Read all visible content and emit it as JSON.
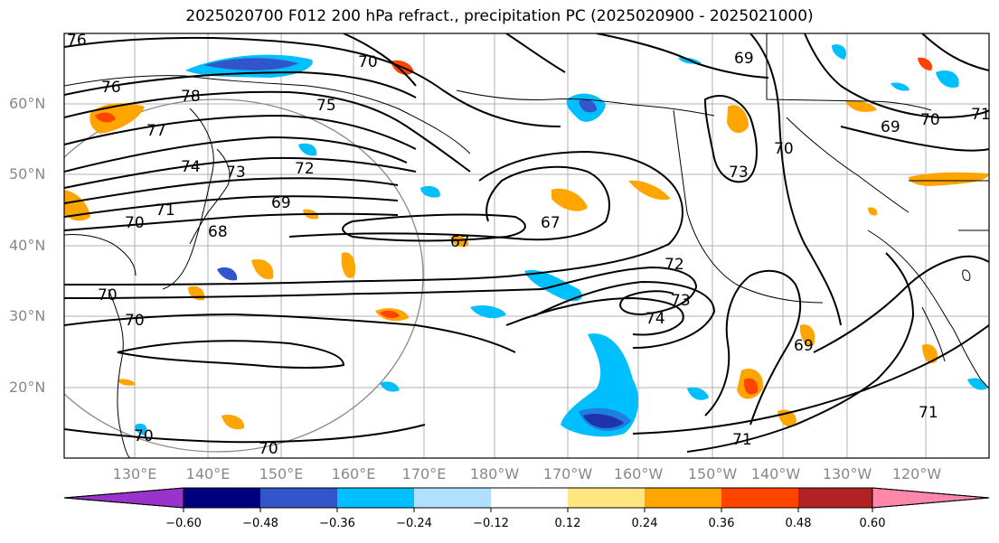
{
  "title": "2025020700 F012 200 hPa refract., precipitation PC (2025020900 - 2025021000)",
  "lat_labels": [
    "60°N",
    "50°N",
    "40°N",
    "30°N",
    "20°N"
  ],
  "lon_labels": [
    "130°E",
    "140°E",
    "150°E",
    "160°E",
    "170°E",
    "180°W",
    "170°W",
    "160°W",
    "150°W",
    "140°W",
    "130°W",
    "120°W"
  ],
  "contour_labels": [
    "76",
    "76",
    "78",
    "75",
    "77",
    "74",
    "73",
    "72",
    "71",
    "70",
    "69",
    "68",
    "67",
    "67",
    "72",
    "73",
    "74",
    "70",
    "69",
    "71",
    "70",
    "69",
    "73",
    "70",
    "69",
    "71",
    "71",
    "70",
    "70",
    "70",
    "70"
  ],
  "colorbar": {
    "tick_labels": [
      "−0.60",
      "−0.48",
      "−0.36",
      "−0.24",
      "−0.12",
      "0.12",
      "0.24",
      "0.36",
      "0.48",
      "0.60"
    ],
    "colors": [
      "#9933cc",
      "#00007f",
      "#3355cc",
      "#00bfff",
      "#b0e0ff",
      "#ffffff",
      "#ffe680",
      "#ffa500",
      "#ff4400",
      "#b22222",
      "#ff88aa"
    ]
  }
}
